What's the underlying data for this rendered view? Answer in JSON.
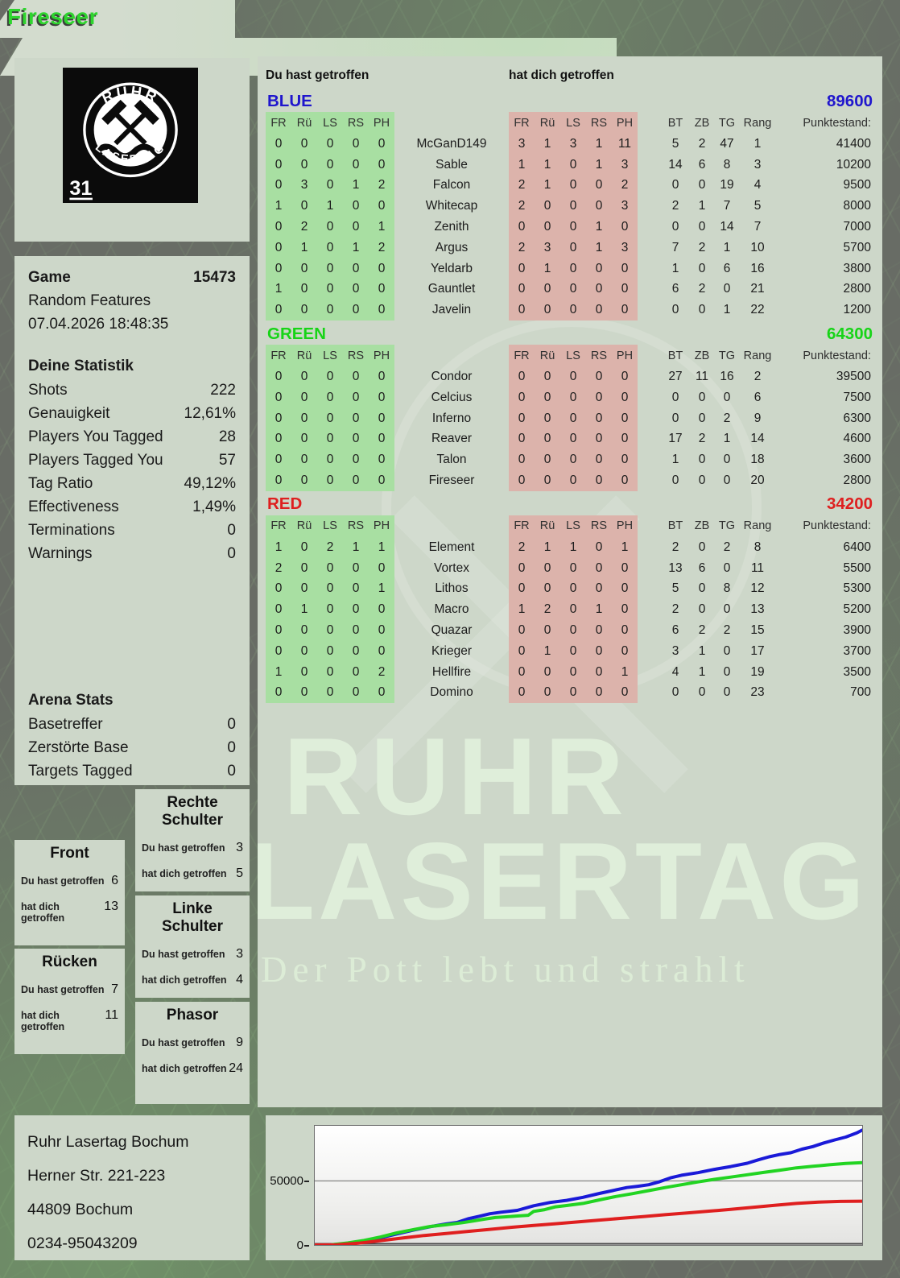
{
  "header": {
    "player": "Fireseer",
    "score": "Punktestand: 2800",
    "team": "GREEN",
    "rank": "Rang: 20 / 23"
  },
  "logo": {
    "top_text": "RUHR",
    "bottom_text": "LASERTAG",
    "badge": "31"
  },
  "sidebar": {
    "game_label": "Game",
    "game_number": "15473",
    "mode": "Random Features",
    "datetime": "07.04.2026 18:48:35",
    "stats_title": "Deine Statistik",
    "stats": [
      {
        "label": "Shots",
        "value": "222"
      },
      {
        "label": "Genauigkeit",
        "value": "12,61%"
      },
      {
        "label": "Players You Tagged",
        "value": "28"
      },
      {
        "label": "Players Tagged You",
        "value": "57"
      },
      {
        "label": "Tag Ratio",
        "value": "49,12%"
      },
      {
        "label": "Effectiveness",
        "value": "1,49%"
      },
      {
        "label": "Terminations",
        "value": "0"
      },
      {
        "label": "Warnings",
        "value": "0"
      }
    ],
    "arena_title": "Arena Stats",
    "arena": [
      {
        "label": "Basetreffer",
        "value": "0"
      },
      {
        "label": "Zerstörte Base",
        "value": "0"
      },
      {
        "label": "Targets Tagged",
        "value": "0"
      }
    ]
  },
  "scoreboard": {
    "you_hit_label": "Du hast getroffen",
    "hit_you_label": "hat dich getroffen",
    "col_headers": [
      "FR",
      "Rü",
      "LS",
      "RS",
      "PH"
    ],
    "right_headers": [
      "BT",
      "ZB",
      "TG",
      "Rang",
      "Punktestand:"
    ],
    "teams": [
      {
        "name": "BLUE",
        "color": "#2016cd",
        "total": "89600",
        "rows": [
          {
            "you": [
              0,
              0,
              0,
              0,
              0
            ],
            "player": "McGanD149",
            "them": [
              3,
              1,
              3,
              1,
              11
            ],
            "bt": 5,
            "zb": 2,
            "tg": 47,
            "rang": 1,
            "punkte": "41400"
          },
          {
            "you": [
              0,
              0,
              0,
              0,
              0
            ],
            "player": "Sable",
            "them": [
              1,
              1,
              0,
              1,
              3
            ],
            "bt": 14,
            "zb": 6,
            "tg": 8,
            "rang": 3,
            "punkte": "10200"
          },
          {
            "you": [
              0,
              3,
              0,
              1,
              2
            ],
            "player": "Falcon",
            "them": [
              2,
              1,
              0,
              0,
              2
            ],
            "bt": 0,
            "zb": 0,
            "tg": 19,
            "rang": 4,
            "punkte": "9500"
          },
          {
            "you": [
              1,
              0,
              1,
              0,
              0
            ],
            "player": "Whitecap",
            "them": [
              2,
              0,
              0,
              0,
              3
            ],
            "bt": 2,
            "zb": 1,
            "tg": 7,
            "rang": 5,
            "punkte": "8000"
          },
          {
            "you": [
              0,
              2,
              0,
              0,
              1
            ],
            "player": "Zenith",
            "them": [
              0,
              0,
              0,
              1,
              0
            ],
            "bt": 0,
            "zb": 0,
            "tg": 14,
            "rang": 7,
            "punkte": "7000"
          },
          {
            "you": [
              0,
              1,
              0,
              1,
              2
            ],
            "player": "Argus",
            "them": [
              2,
              3,
              0,
              1,
              3
            ],
            "bt": 7,
            "zb": 2,
            "tg": 1,
            "rang": 10,
            "punkte": "5700"
          },
          {
            "you": [
              0,
              0,
              0,
              0,
              0
            ],
            "player": "Yeldarb",
            "them": [
              0,
              1,
              0,
              0,
              0
            ],
            "bt": 1,
            "zb": 0,
            "tg": 6,
            "rang": 16,
            "punkte": "3800"
          },
          {
            "you": [
              1,
              0,
              0,
              0,
              0
            ],
            "player": "Gauntlet",
            "them": [
              0,
              0,
              0,
              0,
              0
            ],
            "bt": 6,
            "zb": 2,
            "tg": 0,
            "rang": 21,
            "punkte": "2800"
          },
          {
            "you": [
              0,
              0,
              0,
              0,
              0
            ],
            "player": "Javelin",
            "them": [
              0,
              0,
              0,
              0,
              0
            ],
            "bt": 0,
            "zb": 0,
            "tg": 1,
            "rang": 22,
            "punkte": "1200"
          }
        ]
      },
      {
        "name": "GREEN",
        "color": "#17d417",
        "total": "64300",
        "rows": [
          {
            "you": [
              0,
              0,
              0,
              0,
              0
            ],
            "player": "Condor",
            "them": [
              0,
              0,
              0,
              0,
              0
            ],
            "bt": 27,
            "zb": 11,
            "tg": 16,
            "rang": 2,
            "punkte": "39500"
          },
          {
            "you": [
              0,
              0,
              0,
              0,
              0
            ],
            "player": "Celcius",
            "them": [
              0,
              0,
              0,
              0,
              0
            ],
            "bt": 0,
            "zb": 0,
            "tg": 0,
            "rang": 6,
            "punkte": "7500"
          },
          {
            "you": [
              0,
              0,
              0,
              0,
              0
            ],
            "player": "Inferno",
            "them": [
              0,
              0,
              0,
              0,
              0
            ],
            "bt": 0,
            "zb": 0,
            "tg": 2,
            "rang": 9,
            "punkte": "6300"
          },
          {
            "you": [
              0,
              0,
              0,
              0,
              0
            ],
            "player": "Reaver",
            "them": [
              0,
              0,
              0,
              0,
              0
            ],
            "bt": 17,
            "zb": 2,
            "tg": 1,
            "rang": 14,
            "punkte": "4600"
          },
          {
            "you": [
              0,
              0,
              0,
              0,
              0
            ],
            "player": "Talon",
            "them": [
              0,
              0,
              0,
              0,
              0
            ],
            "bt": 1,
            "zb": 0,
            "tg": 0,
            "rang": 18,
            "punkte": "3600"
          },
          {
            "you": [
              0,
              0,
              0,
              0,
              0
            ],
            "player": "Fireseer",
            "them": [
              0,
              0,
              0,
              0,
              0
            ],
            "bt": 0,
            "zb": 0,
            "tg": 0,
            "rang": 20,
            "punkte": "2800"
          }
        ]
      },
      {
        "name": "RED",
        "color": "#de1f1f",
        "total": "34200",
        "rows": [
          {
            "you": [
              1,
              0,
              2,
              1,
              1
            ],
            "player": "Element",
            "them": [
              2,
              1,
              1,
              0,
              1
            ],
            "bt": 2,
            "zb": 0,
            "tg": 2,
            "rang": 8,
            "punkte": "6400"
          },
          {
            "you": [
              2,
              0,
              0,
              0,
              0
            ],
            "player": "Vortex",
            "them": [
              0,
              0,
              0,
              0,
              0
            ],
            "bt": 13,
            "zb": 6,
            "tg": 0,
            "rang": 11,
            "punkte": "5500"
          },
          {
            "you": [
              0,
              0,
              0,
              0,
              1
            ],
            "player": "Lithos",
            "them": [
              0,
              0,
              0,
              0,
              0
            ],
            "bt": 5,
            "zb": 0,
            "tg": 8,
            "rang": 12,
            "punkte": "5300"
          },
          {
            "you": [
              0,
              1,
              0,
              0,
              0
            ],
            "player": "Macro",
            "them": [
              1,
              2,
              0,
              1,
              0
            ],
            "bt": 2,
            "zb": 0,
            "tg": 0,
            "rang": 13,
            "punkte": "5200"
          },
          {
            "you": [
              0,
              0,
              0,
              0,
              0
            ],
            "player": "Quazar",
            "them": [
              0,
              0,
              0,
              0,
              0
            ],
            "bt": 6,
            "zb": 2,
            "tg": 2,
            "rang": 15,
            "punkte": "3900"
          },
          {
            "you": [
              0,
              0,
              0,
              0,
              0
            ],
            "player": "Krieger",
            "them": [
              0,
              1,
              0,
              0,
              0
            ],
            "bt": 3,
            "zb": 1,
            "tg": 0,
            "rang": 17,
            "punkte": "3700"
          },
          {
            "you": [
              1,
              0,
              0,
              0,
              2
            ],
            "player": "Hellfire",
            "them": [
              0,
              0,
              0,
              0,
              1
            ],
            "bt": 4,
            "zb": 1,
            "tg": 0,
            "rang": 19,
            "punkte": "3500"
          },
          {
            "you": [
              0,
              0,
              0,
              0,
              0
            ],
            "player": "Domino",
            "them": [
              0,
              0,
              0,
              0,
              0
            ],
            "bt": 0,
            "zb": 0,
            "tg": 0,
            "rang": 23,
            "punkte": "700"
          }
        ]
      }
    ]
  },
  "zones": {
    "du_label": "Du hast getroffen",
    "dich_label": "hat dich getroffen",
    "list": [
      {
        "title": "Front",
        "du": "6",
        "dich": "13"
      },
      {
        "title": "Rücken",
        "du": "7",
        "dich": "11"
      },
      {
        "title": "Rechte Schulter",
        "du": "3",
        "dich": "5"
      },
      {
        "title": "Linke Schulter",
        "du": "3",
        "dich": "4"
      },
      {
        "title": "Phasor",
        "du": "9",
        "dich": "24"
      }
    ]
  },
  "watermark": {
    "line1": "RUHR",
    "line2": "LASERTAG",
    "slogan": "Der Pott lebt und strahlt"
  },
  "footer": {
    "address": [
      "Ruhr Lasertag Bochum",
      "Herner Str. 221-223",
      "44809 Bochum",
      "0234-95043209"
    ]
  },
  "chart_data": {
    "type": "line",
    "title": "",
    "xlabel": "",
    "ylabel": "",
    "ylim": [
      0,
      93000
    ],
    "yticks": [
      0,
      50000
    ],
    "ytick_labels": [
      "0",
      "50000"
    ],
    "grid": "horizontal gridline at 50000 and baseline at 0",
    "legend_position": "none",
    "series": [
      {
        "name": "BLUE",
        "color": "#1a1ad8",
        "points": [
          [
            0,
            0
          ],
          [
            3,
            100
          ],
          [
            6,
            1200
          ],
          [
            9,
            3200
          ],
          [
            12,
            5600
          ],
          [
            15,
            8600
          ],
          [
            18,
            11600
          ],
          [
            21,
            14200
          ],
          [
            24,
            16400
          ],
          [
            26,
            17600
          ],
          [
            28,
            20400
          ],
          [
            30,
            22400
          ],
          [
            32,
            24400
          ],
          [
            34,
            25600
          ],
          [
            37,
            27000
          ],
          [
            40,
            30600
          ],
          [
            43,
            33200
          ],
          [
            46,
            34800
          ],
          [
            49,
            37200
          ],
          [
            52,
            40200
          ],
          [
            55,
            43000
          ],
          [
            57,
            44800
          ],
          [
            59,
            45800
          ],
          [
            61,
            47000
          ],
          [
            63,
            49400
          ],
          [
            65,
            52400
          ],
          [
            67,
            54400
          ],
          [
            70,
            56400
          ],
          [
            73,
            59000
          ],
          [
            76,
            61200
          ],
          [
            79,
            63800
          ],
          [
            81,
            66400
          ],
          [
            83,
            68800
          ],
          [
            85,
            70600
          ],
          [
            87,
            72000
          ],
          [
            89,
            74800
          ],
          [
            91,
            76800
          ],
          [
            93,
            79600
          ],
          [
            95,
            82000
          ],
          [
            97,
            84200
          ],
          [
            99,
            87400
          ],
          [
            100,
            89600
          ]
        ]
      },
      {
        "name": "GREEN",
        "color": "#22d422",
        "points": [
          [
            0,
            0
          ],
          [
            3,
            200
          ],
          [
            6,
            1600
          ],
          [
            9,
            3600
          ],
          [
            12,
            6200
          ],
          [
            15,
            9400
          ],
          [
            18,
            12000
          ],
          [
            21,
            14400
          ],
          [
            24,
            15800
          ],
          [
            27,
            17400
          ],
          [
            29,
            18800
          ],
          [
            31,
            20200
          ],
          [
            33,
            21400
          ],
          [
            35,
            22000
          ],
          [
            37,
            22600
          ],
          [
            39,
            23200
          ],
          [
            40,
            26200
          ],
          [
            42,
            27600
          ],
          [
            44,
            29800
          ],
          [
            46,
            30800
          ],
          [
            49,
            32400
          ],
          [
            52,
            35200
          ],
          [
            55,
            37800
          ],
          [
            58,
            40000
          ],
          [
            61,
            42400
          ],
          [
            64,
            44800
          ],
          [
            67,
            47000
          ],
          [
            70,
            49200
          ],
          [
            73,
            51200
          ],
          [
            76,
            53000
          ],
          [
            79,
            54800
          ],
          [
            82,
            56600
          ],
          [
            85,
            58400
          ],
          [
            88,
            60200
          ],
          [
            91,
            61400
          ],
          [
            94,
            62600
          ],
          [
            97,
            63600
          ],
          [
            100,
            64300
          ]
        ]
      },
      {
        "name": "RED",
        "color": "#df1f1f",
        "points": [
          [
            0,
            0
          ],
          [
            4,
            100
          ],
          [
            8,
            1400
          ],
          [
            12,
            3400
          ],
          [
            16,
            5400
          ],
          [
            20,
            7400
          ],
          [
            24,
            9000
          ],
          [
            28,
            10600
          ],
          [
            32,
            12200
          ],
          [
            36,
            13800
          ],
          [
            40,
            15200
          ],
          [
            44,
            16600
          ],
          [
            48,
            18000
          ],
          [
            52,
            19400
          ],
          [
            56,
            20800
          ],
          [
            60,
            22200
          ],
          [
            64,
            23600
          ],
          [
            68,
            25000
          ],
          [
            72,
            26400
          ],
          [
            76,
            27800
          ],
          [
            80,
            29400
          ],
          [
            84,
            31000
          ],
          [
            88,
            32400
          ],
          [
            92,
            33400
          ],
          [
            96,
            34000
          ],
          [
            100,
            34200
          ]
        ]
      }
    ]
  }
}
